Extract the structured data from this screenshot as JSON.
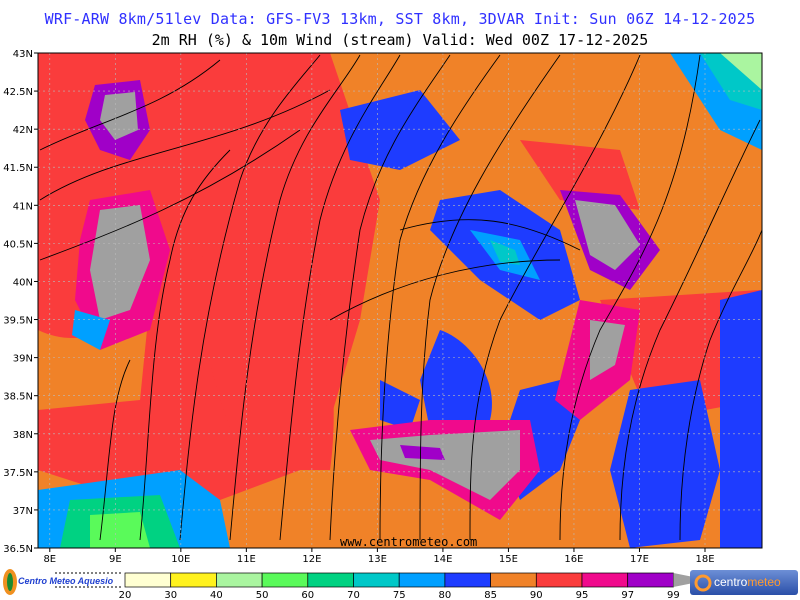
{
  "header": {
    "title": "WRF-ARW 8km/51lev  Data: GFS-FV3 13km, SST 8km, 3DVAR  Init: Sun 06Z 14-12-2025",
    "subtitle": "2m RH (%) & 10m Wind (stream)  Valid: Wed 00Z 17-12-2025"
  },
  "map": {
    "lat_labels": [
      "43N",
      "42.5N",
      "42N",
      "41.5N",
      "41N",
      "40.5N",
      "40N",
      "39.5N",
      "39N",
      "38.5N",
      "38N",
      "37.5N",
      "37N",
      "36.5N"
    ],
    "lon_labels": [
      "8E",
      "9E",
      "10E",
      "11E",
      "12E",
      "13E",
      "14E",
      "15E",
      "16E",
      "17E",
      "18E"
    ],
    "lon_range": [
      7.82,
      18.87
    ],
    "lat_range": [
      36.5,
      43.0
    ],
    "watermark": "www.centrometeo.com"
  },
  "legend": {
    "ticks": [
      "20",
      "30",
      "40",
      "50",
      "60",
      "70",
      "75",
      "80",
      "85",
      "90",
      "95",
      "97",
      "99"
    ],
    "colors": [
      "#ffffd2",
      "#fff21e",
      "#aaf5a0",
      "#5afa5a",
      "#00d282",
      "#00c8c8",
      "#00a0ff",
      "#1e3cff",
      "#f08228",
      "#fa3c3c",
      "#f00a8c",
      "#a000c8",
      "#a0a0a0"
    ]
  },
  "logos": {
    "left": "Centro Meteo Aquesio",
    "right_a": "centro",
    "right_b": "meteo"
  }
}
